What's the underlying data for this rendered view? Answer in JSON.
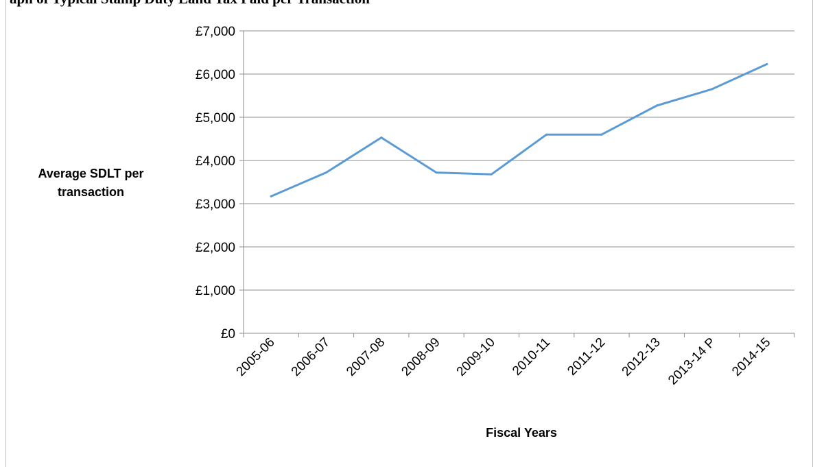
{
  "header": {
    "title_cut": "aph of Typical Stamp Duty Land Tax Paid per Transaction"
  },
  "chart_data": {
    "type": "line",
    "title": "",
    "xlabel": "Fiscal Years",
    "ylabel": "Average SDLT per transaction",
    "categories": [
      "2005-06",
      "2006-07",
      "2007-08",
      "2008-09",
      "2009-10",
      "2010-11",
      "2011-12",
      "2012-13",
      "2013-14 P",
      "2014-15"
    ],
    "series": [
      {
        "values": [
          3170,
          3720,
          4530,
          3720,
          3680,
          4600,
          4600,
          5270,
          5650,
          6230
        ]
      }
    ],
    "ylim": [
      0,
      7000
    ],
    "yticks": [
      0,
      1000,
      2000,
      3000,
      4000,
      5000,
      6000,
      7000
    ],
    "ytick_labels": [
      "£0",
      "£1,000",
      "£2,000",
      "£3,000",
      "£4,000",
      "£5,000",
      "£6,000",
      "£7,000"
    ],
    "grid": true,
    "legend": "none",
    "line_color": "#5b9bd5"
  }
}
